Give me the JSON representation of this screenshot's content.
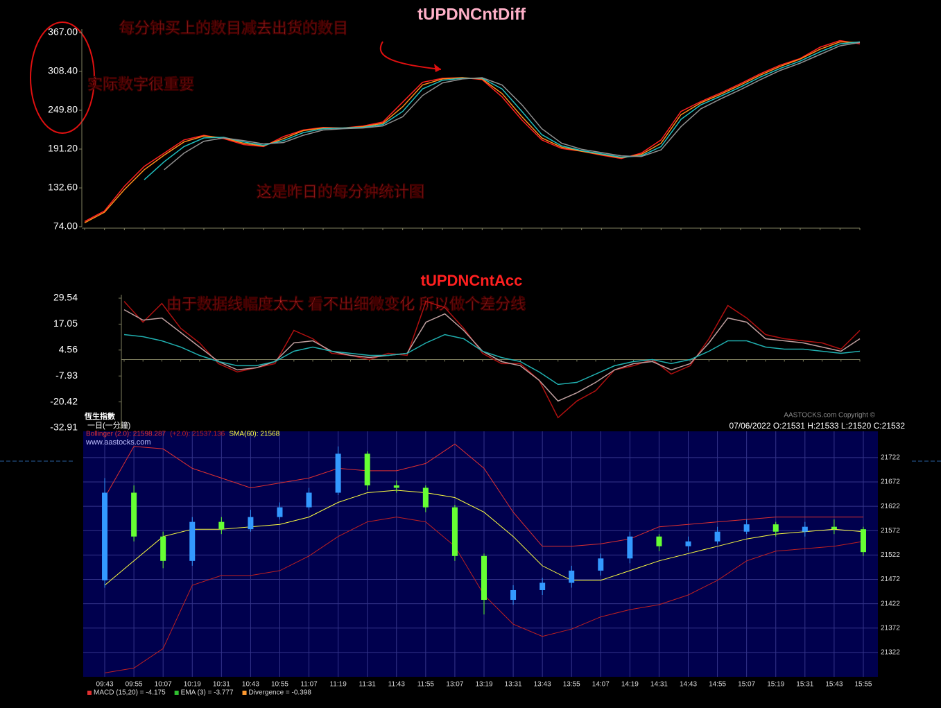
{
  "chart_data": [
    {
      "type": "line",
      "title": "tUPDNCntDiff",
      "annotations": [
        "每分钟买上的数目减去出货的数目",
        "实际数字很重要",
        "这是昨日的每分钟统计图"
      ],
      "ylim": [
        74,
        367
      ],
      "yticks": [
        {
          "value": 74,
          "label": "74.00"
        },
        {
          "value": 132.6,
          "label": "132.60"
        },
        {
          "value": 191.2,
          "label": "191.20"
        },
        {
          "value": 249.8,
          "label": "249.80"
        },
        {
          "value": 308.4,
          "label": "308.40"
        },
        {
          "value": 367,
          "label": "367.00"
        }
      ],
      "series": [
        {
          "color": "#ff2020",
          "values": [
            82,
            98,
            135,
            165,
            185,
            205,
            212,
            207,
            198,
            195,
            210,
            220,
            224,
            223,
            226,
            232,
            262,
            292,
            298,
            299,
            296,
            270,
            235,
            205,
            192,
            188,
            182,
            177,
            185,
            205,
            248,
            263,
            276,
            290,
            305,
            318,
            328,
            345,
            355,
            350
          ]
        },
        {
          "color": "#ff8c1a",
          "values": [
            80,
            96,
            130,
            160,
            182,
            202,
            211,
            208,
            200,
            196,
            207,
            219,
            223,
            223,
            225,
            230,
            255,
            288,
            297,
            299,
            297,
            275,
            240,
            208,
            194,
            188,
            183,
            178,
            183,
            200,
            243,
            261,
            274,
            288,
            303,
            316,
            327,
            342,
            353,
            352
          ]
        },
        {
          "color": "#20c0c0",
          "values": [
            null,
            null,
            null,
            145,
            172,
            195,
            208,
            209,
            202,
            197,
            204,
            216,
            222,
            223,
            224,
            228,
            248,
            282,
            295,
            298,
            298,
            282,
            248,
            213,
            196,
            189,
            184,
            179,
            181,
            195,
            236,
            258,
            271,
            285,
            300,
            313,
            324,
            338,
            350,
            353
          ]
        },
        {
          "color": "#909090",
          "values": [
            null,
            null,
            null,
            null,
            160,
            185,
            203,
            208,
            204,
            199,
            201,
            212,
            220,
            222,
            223,
            226,
            240,
            272,
            291,
            297,
            299,
            288,
            258,
            222,
            200,
            191,
            186,
            181,
            180,
            190,
            225,
            252,
            267,
            281,
            296,
            310,
            321,
            334,
            347,
            352
          ]
        }
      ]
    },
    {
      "type": "line",
      "title": "tUPDNCntAcc",
      "annotations": [
        "由于数据线幅度太大 看不出细微变化 所以做个差分线"
      ],
      "ylim": [
        -32.91,
        29.54
      ],
      "yticks": [
        -32.91,
        -20.42,
        -7.93,
        4.56,
        17.05,
        29.54
      ],
      "series": [
        {
          "color": "#b01010",
          "values": [
            28,
            18,
            27,
            15,
            8,
            -2,
            -6,
            -4,
            -2,
            14,
            10,
            3,
            2,
            0,
            3,
            2,
            28,
            25,
            15,
            3,
            -2,
            -2,
            -10,
            -28,
            -20,
            -15,
            -5,
            -3,
            0,
            -7,
            -3,
            10,
            26,
            20,
            12,
            10,
            9,
            8,
            5,
            14
          ]
        },
        {
          "color": "#c0a0a0",
          "values": [
            24,
            19,
            20,
            13,
            6,
            -1,
            -5,
            -4,
            -1,
            8,
            9,
            4,
            2,
            1,
            2,
            3,
            18,
            22,
            14,
            4,
            -1,
            -3,
            -10,
            -20,
            -16,
            -11,
            -5,
            -2,
            -1,
            -5,
            -2,
            8,
            20,
            18,
            10,
            9,
            8,
            6,
            4,
            10
          ]
        },
        {
          "color": "#20b0b0",
          "values": [
            12,
            11,
            9,
            6,
            2,
            -1,
            -3,
            -3,
            -1,
            4,
            6,
            4,
            3,
            2,
            2,
            3,
            8,
            12,
            10,
            4,
            1,
            -1,
            -6,
            -12,
            -11,
            -7,
            -3,
            -1,
            0,
            -2,
            0,
            4,
            9,
            9,
            6,
            5,
            5,
            4,
            3,
            4
          ]
        }
      ]
    },
    {
      "type": "candlestick",
      "title": "恆生指數",
      "subtitle": "一日(一分鐘)",
      "info": "07/06/2022   O:21531  H:21533  L:21520  C:21532",
      "copyright": "AASTOCKS.com Copyright ©",
      "source": "www.aastocks.com",
      "categories": [
        "09:43",
        "09:55",
        "10:07",
        "10:19",
        "10:31",
        "10:43",
        "10:55",
        "11:07",
        "11:19",
        "11:31",
        "11:43",
        "11:55",
        "13:07",
        "13:19",
        "13:31",
        "13:43",
        "13:55",
        "14:07",
        "14:19",
        "14:31",
        "14:43",
        "14:55",
        "15:07",
        "15:19",
        "15:31",
        "15:43",
        "15:55"
      ],
      "open": [
        21470,
        21650,
        21560,
        21510,
        21590,
        21575,
        21600,
        21620,
        21650,
        21730,
        21665,
        21660,
        21620,
        21520,
        21430,
        21450,
        21465,
        21490,
        21515,
        21560,
        21540,
        21550,
        21570,
        21585,
        21570,
        21580,
        21575
      ],
      "high": [
        21680,
        21665,
        21570,
        21600,
        21600,
        21615,
        21630,
        21660,
        21745,
        21735,
        21675,
        21665,
        21625,
        21525,
        21460,
        21475,
        21500,
        21525,
        21570,
        21565,
        21560,
        21580,
        21595,
        21590,
        21590,
        21595,
        21580
      ],
      "low": [
        21455,
        21550,
        21495,
        21500,
        21565,
        21570,
        21595,
        21615,
        21645,
        21655,
        21650,
        21610,
        21510,
        21400,
        21420,
        21440,
        21455,
        21480,
        21505,
        21530,
        21530,
        21545,
        21565,
        21560,
        21560,
        21565,
        21520
      ],
      "close": [
        21650,
        21560,
        21510,
        21590,
        21575,
        21600,
        21620,
        21650,
        21730,
        21665,
        21660,
        21620,
        21520,
        21430,
        21450,
        21465,
        21490,
        21515,
        21560,
        21540,
        21550,
        21570,
        21585,
        21570,
        21580,
        21575,
        21528
      ],
      "up_color": "#3399ff",
      "down_color": "#66ff33",
      "series": [
        {
          "name": "Bollinger (2.0): 21598.287",
          "color": "#e03030",
          "values": [
            21640,
            21745,
            21740,
            21700,
            21680,
            21660,
            21670,
            21680,
            21700,
            21695,
            21695,
            21710,
            21750,
            21700,
            21610,
            21540,
            21540,
            21545,
            21555,
            21580,
            21585,
            21590,
            21595,
            21600,
            21600,
            21600,
            21600
          ]
        },
        {
          "name": "(+2.0): 21537.136",
          "color": "#c02020",
          "values": [
            21280,
            21290,
            21330,
            21460,
            21480,
            21480,
            21490,
            21520,
            21560,
            21590,
            21600,
            21590,
            21540,
            21440,
            21380,
            21355,
            21370,
            21395,
            21410,
            21420,
            21440,
            21470,
            21510,
            21530,
            21535,
            21540,
            21550
          ]
        },
        {
          "name": "SMA(60): 21568",
          "color": "#ffff40",
          "values": [
            21460,
            21510,
            21560,
            21575,
            21575,
            21580,
            21585,
            21600,
            21630,
            21650,
            21655,
            21650,
            21640,
            21610,
            21560,
            21500,
            21470,
            21470,
            21490,
            21510,
            21525,
            21540,
            21555,
            21565,
            21570,
            21575,
            21570
          ]
        }
      ],
      "ylim": [
        21272,
        21776
      ],
      "yticks": [
        21322,
        21372,
        21422,
        21472,
        21522,
        21572,
        21622,
        21672,
        21722
      ],
      "grid": true,
      "macd_legend": [
        {
          "label": "MACD (15,20) = -4.175",
          "color": "#e03030"
        },
        {
          "label": "EMA (3) = -3.777",
          "color": "#30c030"
        },
        {
          "label": "Divergence = -0.398",
          "color": "#ff9a30"
        }
      ]
    }
  ]
}
